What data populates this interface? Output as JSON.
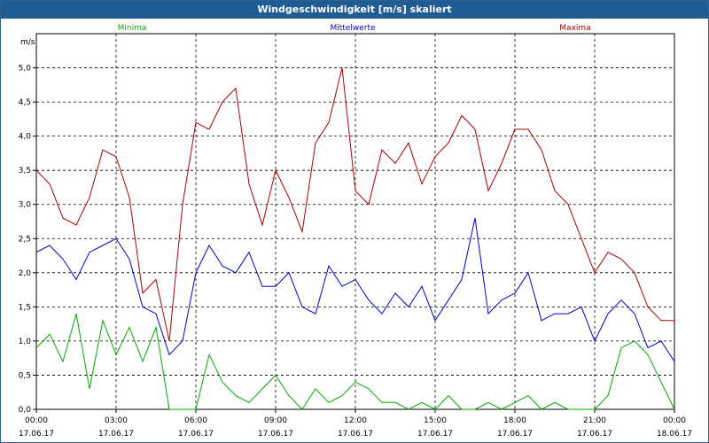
{
  "window": {
    "title": "Windgeschwindigkeit [m/s] skaliert"
  },
  "chart_data": {
    "type": "line",
    "title": "Windgeschwindigkeit [m/s] skaliert",
    "ylabel": "m/s",
    "ylim": [
      0,
      5.5
    ],
    "yticks": [
      "0,0",
      "0,5",
      "1,0",
      "1,5",
      "2,0",
      "2,5",
      "3,0",
      "3,5",
      "4,0",
      "4,5",
      "5,0"
    ],
    "xlim_hours": [
      0,
      24
    ],
    "xticks": [
      {
        "time": "00:00",
        "date": "17.06.17"
      },
      {
        "time": "03:00",
        "date": "17.06.17"
      },
      {
        "time": "06:00",
        "date": "17.06.17"
      },
      {
        "time": "09:00",
        "date": "17.06.17"
      },
      {
        "time": "12:00",
        "date": "17.06.17"
      },
      {
        "time": "15:00",
        "date": "17.06.17"
      },
      {
        "time": "18:00",
        "date": "17.06.17"
      },
      {
        "time": "21:00",
        "date": "17.06.17"
      },
      {
        "time": "00:00",
        "date": "18.06.17"
      }
    ],
    "grid": true,
    "legend_position": "top",
    "x_hours": [
      0,
      0.5,
      1,
      1.5,
      2,
      2.5,
      3,
      3.5,
      4,
      4.5,
      5,
      5.5,
      6,
      6.5,
      7,
      7.5,
      8,
      8.5,
      9,
      9.5,
      10,
      10.5,
      11,
      11.5,
      12,
      12.5,
      13,
      13.5,
      14,
      14.5,
      15,
      15.5,
      16,
      16.5,
      17,
      17.5,
      18,
      18.5,
      19,
      19.5,
      20,
      20.5,
      21,
      21.5,
      22,
      22.5,
      23,
      23.5,
      24
    ],
    "series": [
      {
        "name": "Minima",
        "color": "#00aa00",
        "values": [
          0.9,
          1.1,
          0.7,
          1.4,
          0.3,
          1.3,
          0.8,
          1.2,
          0.7,
          1.2,
          0.0,
          0.0,
          0.0,
          0.8,
          0.4,
          0.2,
          0.1,
          0.3,
          0.5,
          0.2,
          0.0,
          0.3,
          0.1,
          0.2,
          0.4,
          0.3,
          0.1,
          0.1,
          0.0,
          0.1,
          0.0,
          0.2,
          0.0,
          0.0,
          0.1,
          0.0,
          0.1,
          0.2,
          0.0,
          0.1,
          0.0,
          0.0,
          0.0,
          0.2,
          0.9,
          1.0,
          0.8,
          0.4,
          0.0
        ]
      },
      {
        "name": "Mittelwerte",
        "color": "#0000cc",
        "values": [
          2.3,
          2.4,
          2.2,
          1.9,
          2.3,
          2.4,
          2.5,
          2.2,
          1.5,
          1.4,
          0.8,
          1.0,
          2.0,
          2.4,
          2.1,
          2.0,
          2.3,
          1.8,
          1.8,
          2.0,
          1.5,
          1.4,
          2.1,
          1.8,
          1.9,
          1.6,
          1.4,
          1.7,
          1.5,
          1.8,
          1.3,
          1.6,
          1.9,
          2.8,
          1.4,
          1.6,
          1.7,
          2.0,
          1.3,
          1.4,
          1.4,
          1.5,
          1.0,
          1.4,
          1.6,
          1.4,
          0.9,
          1.0,
          0.7
        ]
      },
      {
        "name": "Maxima",
        "color": "#aa0000",
        "values": [
          3.5,
          3.3,
          2.8,
          2.7,
          3.1,
          3.8,
          3.7,
          3.1,
          1.7,
          1.9,
          1.0,
          3.0,
          4.2,
          4.1,
          4.5,
          4.7,
          3.3,
          2.7,
          3.5,
          3.1,
          2.6,
          3.9,
          4.2,
          5.0,
          3.2,
          3.0,
          3.8,
          3.6,
          3.9,
          3.3,
          3.7,
          3.9,
          4.3,
          4.1,
          3.2,
          3.6,
          4.1,
          4.1,
          3.8,
          3.2,
          3.0,
          2.5,
          2.0,
          2.3,
          2.2,
          2.0,
          1.5,
          1.3,
          1.3
        ]
      }
    ]
  }
}
